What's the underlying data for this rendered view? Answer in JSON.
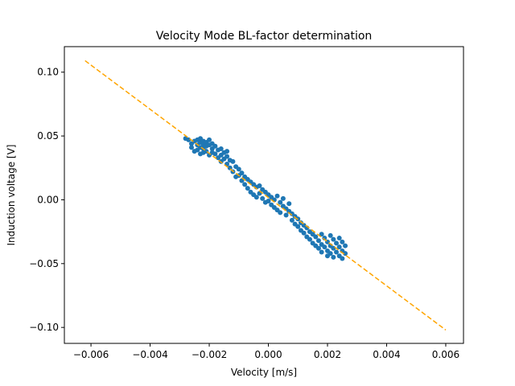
{
  "chart_data": {
    "type": "scatter",
    "title": "Velocity Mode BL-factor determination",
    "xlabel": "Velocity [m/s]",
    "ylabel": "Induction voltage [V]",
    "xlim": [
      -0.0069,
      0.0066
    ],
    "ylim": [
      -0.1125,
      0.12
    ],
    "x_ticks": [
      -0.006,
      -0.004,
      -0.002,
      0.0,
      0.002,
      0.004,
      0.006
    ],
    "x_tick_labels": [
      "−0.006",
      "−0.004",
      "−0.002",
      "0.000",
      "0.002",
      "0.004",
      "0.006"
    ],
    "y_ticks": [
      -0.1,
      -0.05,
      0.0,
      0.05,
      0.1
    ],
    "y_tick_labels": [
      "−0.10",
      "−0.05",
      "0.00",
      "0.05",
      "0.10"
    ],
    "grid": false,
    "legend": "none",
    "series": [
      {
        "kind": "scatter",
        "color": "#1f77b4",
        "marker": "circle",
        "points": [
          [
            -0.0028,
            0.048
          ],
          [
            -0.0027,
            0.047
          ],
          [
            -0.0026,
            0.044
          ],
          [
            -0.0026,
            0.041
          ],
          [
            -0.0025,
            0.046
          ],
          [
            -0.0025,
            0.038
          ],
          [
            -0.0024,
            0.047
          ],
          [
            -0.0024,
            0.043
          ],
          [
            -0.0024,
            0.039
          ],
          [
            -0.0023,
            0.048
          ],
          [
            -0.0023,
            0.045
          ],
          [
            -0.0023,
            0.041
          ],
          [
            -0.0023,
            0.036
          ],
          [
            -0.0022,
            0.046
          ],
          [
            -0.0022,
            0.043
          ],
          [
            -0.0022,
            0.04
          ],
          [
            -0.0022,
            0.037
          ],
          [
            -0.0021,
            0.045
          ],
          [
            -0.0021,
            0.042
          ],
          [
            -0.0021,
            0.038
          ],
          [
            -0.002,
            0.047
          ],
          [
            -0.002,
            0.043
          ],
          [
            -0.002,
            0.035
          ],
          [
            -0.0019,
            0.044
          ],
          [
            -0.0019,
            0.04
          ],
          [
            -0.0019,
            0.037
          ],
          [
            -0.0018,
            0.042
          ],
          [
            -0.0018,
            0.036
          ],
          [
            -0.0017,
            0.039
          ],
          [
            -0.0017,
            0.033
          ],
          [
            -0.0016,
            0.04
          ],
          [
            -0.0016,
            0.035
          ],
          [
            -0.0016,
            0.03
          ],
          [
            -0.0015,
            0.037
          ],
          [
            -0.0015,
            0.032
          ],
          [
            -0.0014,
            0.034
          ],
          [
            -0.0014,
            0.028
          ],
          [
            -0.0014,
            0.038
          ],
          [
            -0.0013,
            0.031
          ],
          [
            -0.0013,
            0.025
          ],
          [
            -0.0012,
            0.03
          ],
          [
            -0.0012,
            0.022
          ],
          [
            -0.0011,
            0.026
          ],
          [
            -0.0011,
            0.018
          ],
          [
            -0.001,
            0.024
          ],
          [
            -0.001,
            0.019
          ],
          [
            -0.0009,
            0.015
          ],
          [
            -0.0009,
            0.021
          ],
          [
            -0.0008,
            0.012
          ],
          [
            -0.0008,
            0.018
          ],
          [
            -0.0007,
            0.016
          ],
          [
            -0.0007,
            0.009
          ],
          [
            -0.0006,
            0.014
          ],
          [
            -0.0006,
            0.006
          ],
          [
            -0.0005,
            0.012
          ],
          [
            -0.0005,
            0.004
          ],
          [
            -0.0004,
            0.01
          ],
          [
            -0.0004,
            0.002
          ],
          [
            -0.0003,
            0.011
          ],
          [
            -0.0003,
            0.005
          ],
          [
            -0.0002,
            0.008
          ],
          [
            -0.0002,
            0.001
          ],
          [
            -0.0001,
            0.006
          ],
          [
            -0.0001,
            -0.002
          ],
          [
            0.0,
            0.004
          ],
          [
            0.0,
            -0.001
          ],
          [
            0.0001,
            0.002
          ],
          [
            0.0001,
            -0.004
          ],
          [
            0.0002,
            0.0
          ],
          [
            0.0002,
            -0.006
          ],
          [
            0.0003,
            0.003
          ],
          [
            0.0003,
            -0.008
          ],
          [
            0.0004,
            -0.002
          ],
          [
            0.0004,
            -0.01
          ],
          [
            0.0005,
            -0.005
          ],
          [
            0.0005,
            0.001
          ],
          [
            0.0006,
            -0.007
          ],
          [
            0.0006,
            -0.012
          ],
          [
            0.0007,
            -0.009
          ],
          [
            0.0007,
            -0.003
          ],
          [
            0.0008,
            -0.011
          ],
          [
            0.0008,
            -0.016
          ],
          [
            0.0009,
            -0.013
          ],
          [
            0.0009,
            -0.019
          ],
          [
            0.001,
            -0.015
          ],
          [
            0.001,
            -0.021
          ],
          [
            0.0011,
            -0.018
          ],
          [
            0.0011,
            -0.024
          ],
          [
            0.0012,
            -0.02
          ],
          [
            0.0012,
            -0.026
          ],
          [
            0.0013,
            -0.022
          ],
          [
            0.0013,
            -0.029
          ],
          [
            0.0014,
            -0.025
          ],
          [
            0.0014,
            -0.031
          ],
          [
            0.0015,
            -0.027
          ],
          [
            0.0015,
            -0.034
          ],
          [
            0.0016,
            -0.029
          ],
          [
            0.0016,
            -0.036
          ],
          [
            0.0017,
            -0.032
          ],
          [
            0.0017,
            -0.038
          ],
          [
            0.0018,
            -0.027
          ],
          [
            0.0018,
            -0.035
          ],
          [
            0.0018,
            -0.041
          ],
          [
            0.0019,
            -0.03
          ],
          [
            0.0019,
            -0.037
          ],
          [
            0.002,
            -0.033
          ],
          [
            0.002,
            -0.04
          ],
          [
            0.002,
            -0.044
          ],
          [
            0.0021,
            -0.028
          ],
          [
            0.0021,
            -0.036
          ],
          [
            0.0021,
            -0.042
          ],
          [
            0.0022,
            -0.031
          ],
          [
            0.0022,
            -0.038
          ],
          [
            0.0022,
            -0.045
          ],
          [
            0.0023,
            -0.034
          ],
          [
            0.0023,
            -0.041
          ],
          [
            0.0024,
            -0.03
          ],
          [
            0.0024,
            -0.037
          ],
          [
            0.0024,
            -0.044
          ],
          [
            0.0025,
            -0.033
          ],
          [
            0.0025,
            -0.04
          ],
          [
            0.0025,
            -0.046
          ],
          [
            0.0026,
            -0.036
          ],
          [
            0.0026,
            -0.042
          ]
        ]
      },
      {
        "kind": "line",
        "style": "dashed",
        "color": "#ffa500",
        "x": [
          -0.0062,
          0.006
        ],
        "y": [
          0.109,
          -0.102
        ]
      }
    ]
  }
}
